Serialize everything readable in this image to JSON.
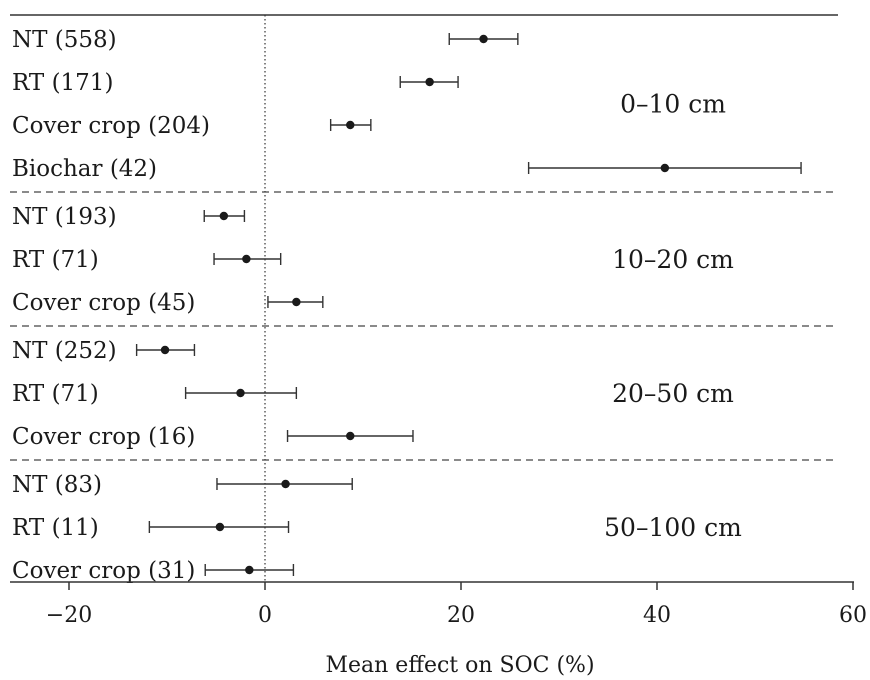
{
  "chart_data": {
    "type": "forest",
    "xlabel": "Mean effect on SOC (%)",
    "xlim": [
      -25,
      60
    ],
    "xticks": [
      -20,
      0,
      20,
      40,
      60
    ],
    "xtick_labels": [
      "−20",
      "0",
      "20",
      "40",
      "60"
    ],
    "zero_line": 0,
    "groups": [
      {
        "label": "0–10 cm",
        "rows": [
          {
            "label": "NT (558)",
            "mean": 22.3,
            "lo": 18.8,
            "hi": 25.8
          },
          {
            "label": "RT (171)",
            "mean": 16.8,
            "lo": 13.8,
            "hi": 19.7
          },
          {
            "label": "Cover crop (204)",
            "mean": 8.7,
            "lo": 6.7,
            "hi": 10.8
          },
          {
            "label": "Biochar (42)",
            "mean": 40.8,
            "lo": 26.9,
            "hi": 54.7
          }
        ]
      },
      {
        "label": "10–20 cm",
        "rows": [
          {
            "label": "NT (193)",
            "mean": -4.2,
            "lo": -6.2,
            "hi": -2.1
          },
          {
            "label": "RT (71)",
            "mean": -1.9,
            "lo": -5.2,
            "hi": 1.6
          },
          {
            "label": "Cover crop (45)",
            "mean": 3.2,
            "lo": 0.3,
            "hi": 5.9
          }
        ]
      },
      {
        "label": "20–50 cm",
        "rows": [
          {
            "label": "NT (252)",
            "mean": -10.2,
            "lo": -13.1,
            "hi": -7.2
          },
          {
            "label": "RT (71)",
            "mean": -2.5,
            "lo": -8.1,
            "hi": 3.2
          },
          {
            "label": "Cover crop (16)",
            "mean": 8.7,
            "lo": 2.3,
            "hi": 15.1
          }
        ]
      },
      {
        "label": "50–100 cm",
        "rows": [
          {
            "label": "NT (83)",
            "mean": 2.1,
            "lo": -4.9,
            "hi": 8.9
          },
          {
            "label": "RT (11)",
            "mean": -4.6,
            "lo": -11.8,
            "hi": 2.4
          },
          {
            "label": "Cover crop (31)",
            "mean": -1.6,
            "lo": -6.1,
            "hi": 2.9
          }
        ]
      }
    ]
  }
}
